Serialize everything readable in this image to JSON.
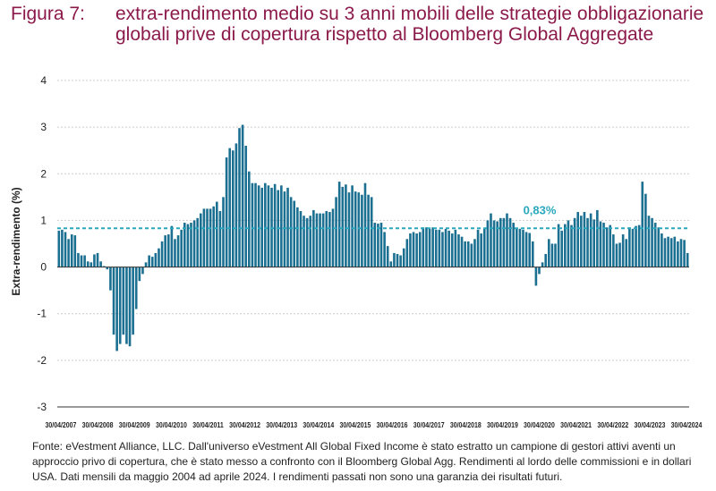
{
  "title": {
    "prefix": "Figura 7:",
    "text": "extra-rendimento medio su 3 anni mobili delle strategie obbligazionarie globali prive di copertura rispetto al Bloomberg Global Aggregate"
  },
  "footnote": "Fonte: eVestment Alliance, LLC. Dall'universo eVestment All Global Fixed Income è stato estratto un campione di gestori attivi aventi un approccio privo di copertura, che è stato messo a confronto con il Bloomberg Global Agg. Rendimenti al lordo delle commissioni e in dollari USA. Dati mensili da maggio 2004 ad aprile 2024. I rendimenti passati non sono una garanzia dei risultati futuri.",
  "colors": {
    "bar": "#1b6f91",
    "average_line": "#2aa8bd",
    "axis": "#333333",
    "grid": "#cccccc",
    "title": "#8b1a4a"
  },
  "chart_data": {
    "type": "bar",
    "ylabel": "Extra-rendimento (%)",
    "ylim": [
      -3,
      4
    ],
    "yticks": [
      4,
      3,
      2,
      1,
      0,
      -1,
      -2,
      -3
    ],
    "grid": "horizontal dashed",
    "x_tick_labels": [
      "30/04/2007",
      "30/04/2008",
      "30/04/2009",
      "30/04/2010",
      "30/04/2011",
      "30/04/2012",
      "30/04/2013",
      "30/04/2014",
      "30/04/2015",
      "30/04/2016",
      "30/04/2017",
      "30/04/2018",
      "30/04/2019",
      "30/04/2020",
      "30/04/2021",
      "30/04/2022",
      "30/04/2023",
      "30/04/2024"
    ],
    "average": {
      "value": 0.83,
      "label": "0,83%"
    },
    "values": [
      0.78,
      0.8,
      0.75,
      0.6,
      0.7,
      0.68,
      0.3,
      0.25,
      0.25,
      0.12,
      0.1,
      0.27,
      0.3,
      0.12,
      0.02,
      -0.05,
      -0.5,
      -1.45,
      -1.8,
      -1.65,
      -1.45,
      -1.65,
      -1.7,
      -1.45,
      -0.9,
      -0.3,
      -0.15,
      0.1,
      0.25,
      0.22,
      0.3,
      0.4,
      0.55,
      0.68,
      0.7,
      0.88,
      0.6,
      0.68,
      0.8,
      0.95,
      0.92,
      0.95,
      1.0,
      1.05,
      1.15,
      1.25,
      1.25,
      1.25,
      1.3,
      1.4,
      1.2,
      1.5,
      2.35,
      2.55,
      2.5,
      2.65,
      2.98,
      3.05,
      2.6,
      2.05,
      1.8,
      1.8,
      1.75,
      1.7,
      1.8,
      1.75,
      1.7,
      1.78,
      1.65,
      1.75,
      1.62,
      1.7,
      1.5,
      1.42,
      1.28,
      1.2,
      1.1,
      1.05,
      1.1,
      1.22,
      1.15,
      1.15,
      1.15,
      1.2,
      1.18,
      1.25,
      1.5,
      1.83,
      1.72,
      1.77,
      1.6,
      1.75,
      1.62,
      1.6,
      1.55,
      1.8,
      1.55,
      1.5,
      0.95,
      0.93,
      0.95,
      0.75,
      0.45,
      0.12,
      0.3,
      0.28,
      0.25,
      0.4,
      0.6,
      0.72,
      0.75,
      0.72,
      0.75,
      0.85,
      0.85,
      0.82,
      0.85,
      0.8,
      0.8,
      0.75,
      0.82,
      0.78,
      0.72,
      0.8,
      0.7,
      0.65,
      0.55,
      0.55,
      0.5,
      0.6,
      0.8,
      0.72,
      0.83,
      1.0,
      1.15,
      1.0,
      0.98,
      1.05,
      1.05,
      1.15,
      1.05,
      0.95,
      0.82,
      0.82,
      0.8,
      0.75,
      0.73,
      0.55,
      -0.4,
      -0.15,
      0.1,
      0.28,
      0.6,
      0.5,
      0.5,
      0.92,
      0.78,
      0.92,
      1.0,
      0.9,
      1.05,
      1.18,
      1.1,
      1.18,
      1.05,
      1.15,
      1.02,
      1.22,
      0.98,
      0.95,
      0.85,
      0.9,
      0.7,
      0.5,
      0.52,
      0.7,
      0.6,
      0.85,
      0.82,
      0.88,
      0.9,
      1.83,
      1.57,
      1.1,
      1.05,
      0.95,
      0.85,
      0.72,
      0.62,
      0.65,
      0.62,
      0.65,
      0.55,
      0.6,
      0.58,
      0.3
    ]
  }
}
